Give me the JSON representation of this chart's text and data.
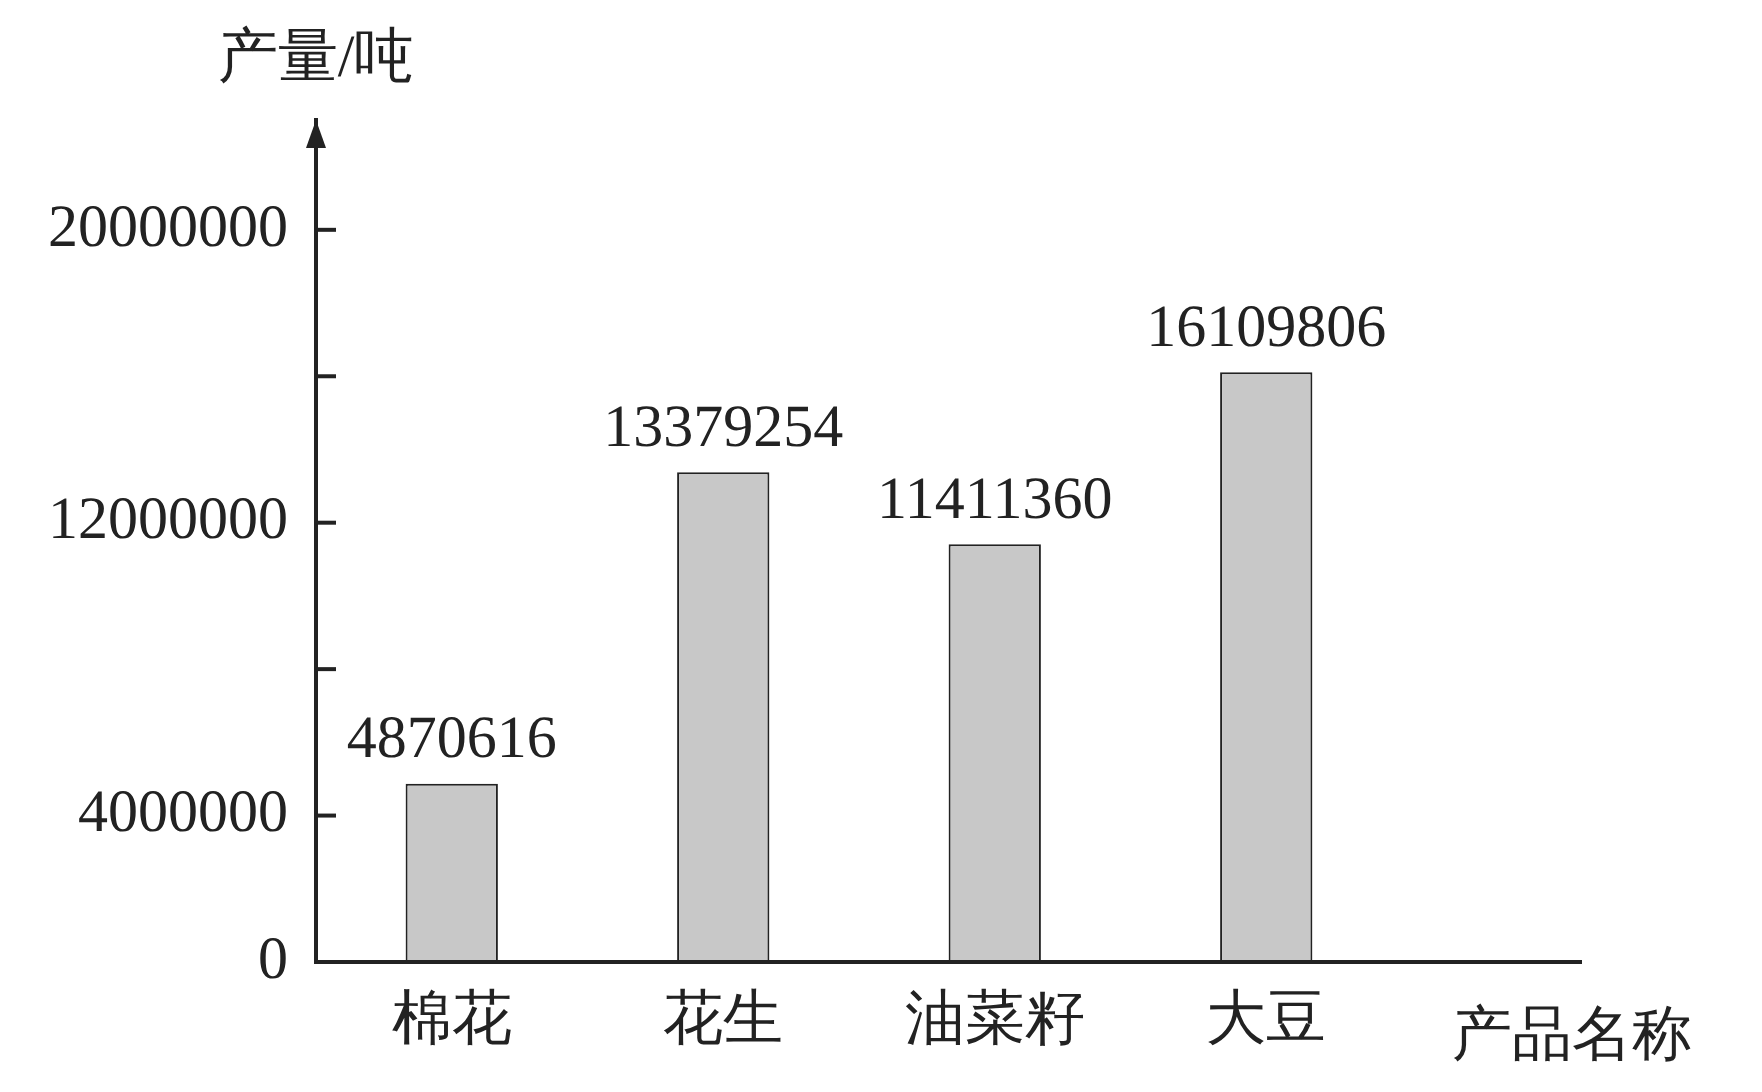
{
  "chart_data": {
    "type": "bar",
    "xlabel": "产品名称",
    "ylabel": "产量/吨",
    "categories": [
      "棉花",
      "花生",
      "油菜籽",
      "大豆"
    ],
    "values": [
      4870616,
      13379254,
      11411360,
      16109806
    ],
    "color": "#c8c8c8",
    "ylim": [
      0,
      23000000
    ],
    "yticks": [
      0,
      4000000,
      {
        "value": 8000000,
        "label": null
      },
      12000000,
      {
        "value": 16000000,
        "label": null
      },
      20000000
    ],
    "data_labels": true,
    "grid": false,
    "legend": false
  }
}
